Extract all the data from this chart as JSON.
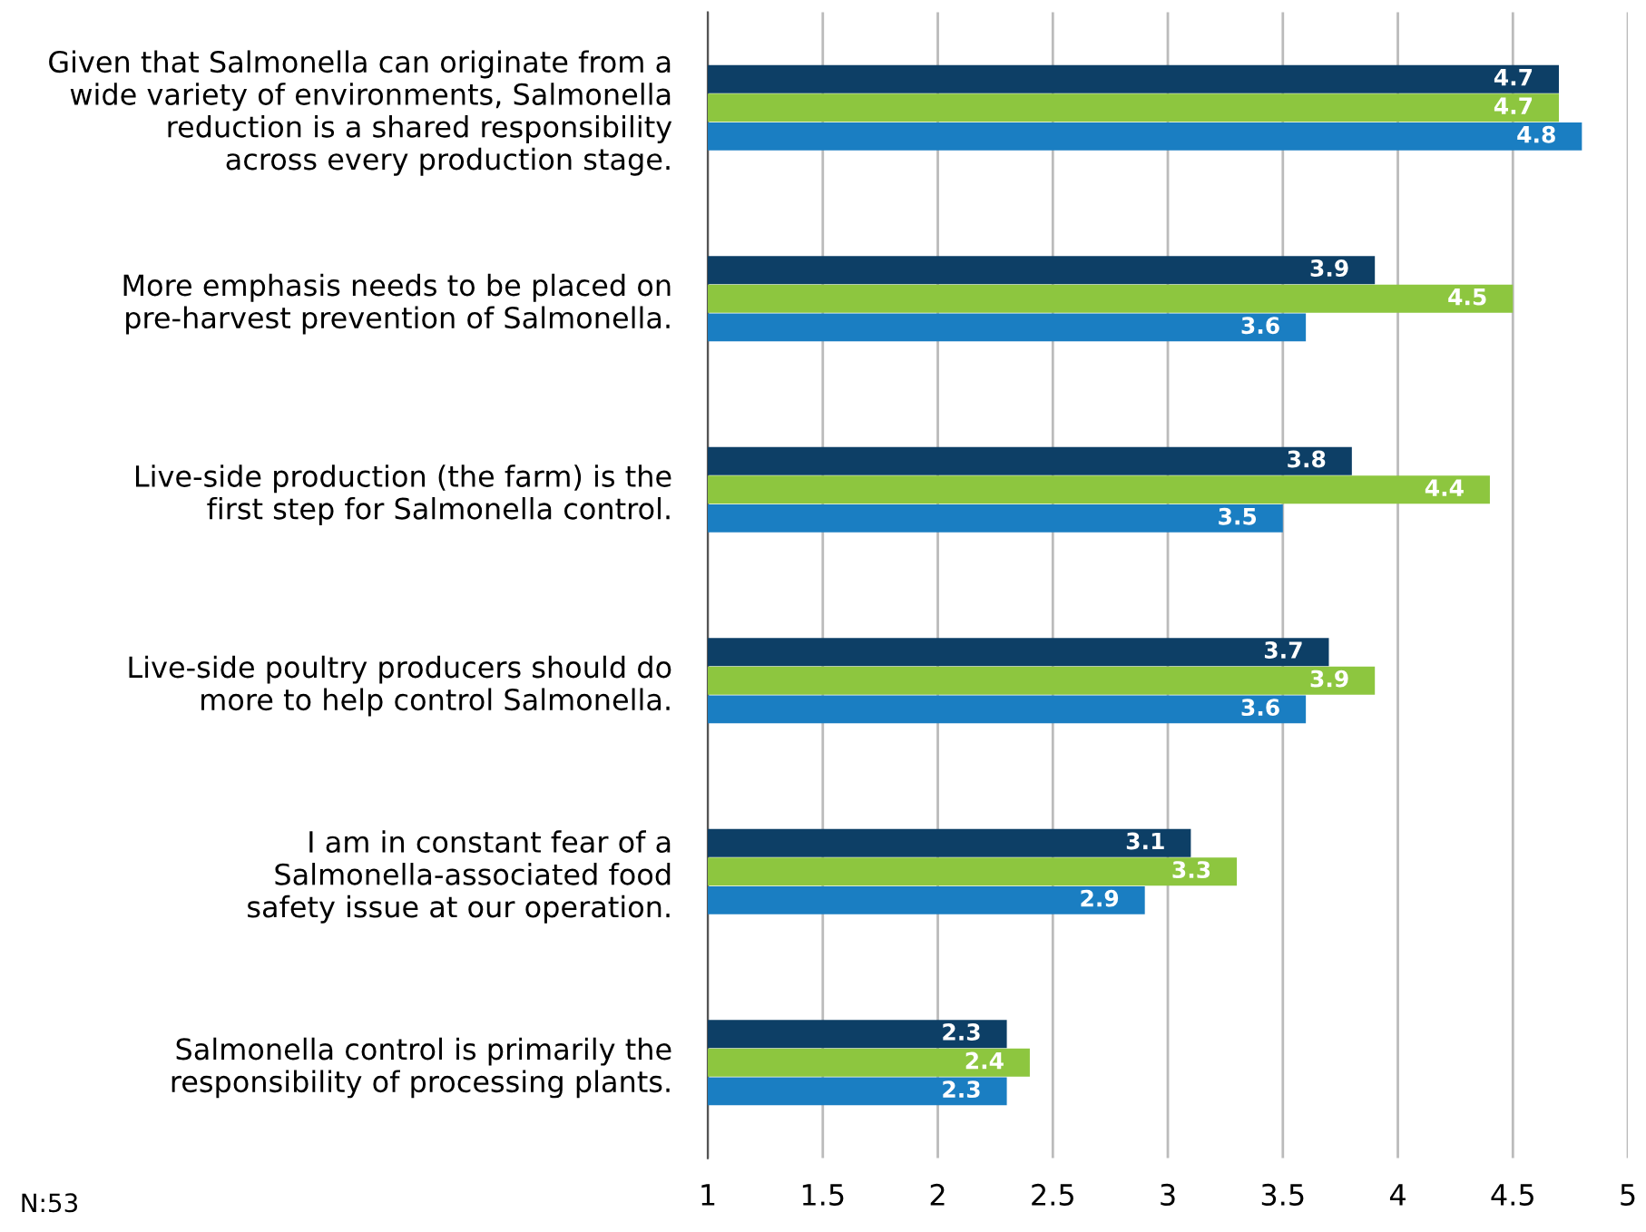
{
  "chart_data": {
    "type": "bar",
    "orientation": "horizontal",
    "categories": [
      "Given that Salmonella can originate from a\nwide variety of environments, Salmonella\nreduction is a shared responsibility\nacross every production stage.",
      "More emphasis needs to be placed on\npre-harvest prevention of Salmonella.",
      "Live-side production (the farm) is the\nfirst step for Salmonella control.",
      "Live-side poultry producers should do\nmore to help control Salmonella.",
      "I am in constant fear of a\nSalmonella-associated food\nsafety issue at our operation.",
      "Salmonella control is primarily the\nresponsibility of processing plants."
    ],
    "series": [
      {
        "color": "#0d3f66",
        "values": [
          4.7,
          3.9,
          3.8,
          3.7,
          3.1,
          2.3
        ]
      },
      {
        "color": "#8dc63f",
        "values": [
          4.7,
          4.5,
          4.4,
          3.9,
          3.3,
          2.4
        ]
      },
      {
        "color": "#1a7ec2",
        "values": [
          4.8,
          3.6,
          3.5,
          3.6,
          2.9,
          2.3
        ]
      }
    ],
    "xlim": [
      1,
      5
    ],
    "xticks": [
      1,
      1.5,
      2,
      2.5,
      3,
      3.5,
      4,
      4.5,
      5
    ],
    "grid": "x",
    "data_labels": true,
    "legend": false,
    "annotations": [
      "N:53"
    ]
  }
}
